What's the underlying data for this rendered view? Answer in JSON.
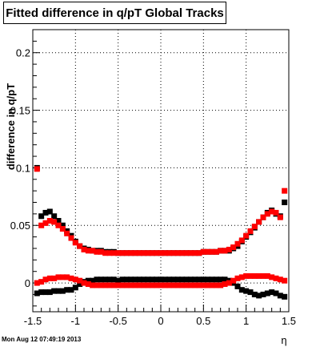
{
  "chart_data": {
    "type": "scatter",
    "title": "Fitted difference in q/pT  Global Tracks",
    "ylabel": "difference in q/pT",
    "xlabel": "η",
    "xlim": [
      -1.5,
      1.5
    ],
    "ylim": [
      -0.025,
      0.22
    ],
    "x_tick_labels": [
      "-1.5",
      "-1",
      "-0.5",
      "0",
      "0.5",
      "1",
      "1.5"
    ],
    "y_tick_labels": [
      "0",
      "0.05",
      "0.1",
      "0.15",
      "0.2"
    ],
    "grid": true,
    "series": [
      {
        "color": "#000000",
        "marker": "square",
        "x": [
          -1.45,
          -1.4,
          -1.35,
          -1.3,
          -1.25,
          -1.2,
          -1.15,
          -1.1,
          -1.05,
          -1.0,
          -0.95,
          -0.9,
          -0.85,
          -0.8,
          -0.75,
          -0.7,
          -0.65,
          -0.6,
          -0.55,
          -0.5,
          -0.45,
          -0.4,
          -0.35,
          -0.3,
          -0.25,
          -0.2,
          -0.15,
          -0.1,
          -0.05,
          0.0,
          0.05,
          0.1,
          0.15,
          0.2,
          0.25,
          0.3,
          0.35,
          0.4,
          0.45,
          0.5,
          0.55,
          0.6,
          0.65,
          0.7,
          0.75,
          0.8,
          0.85,
          0.9,
          0.95,
          1.0,
          1.05,
          1.1,
          1.15,
          1.2,
          1.25,
          1.3,
          1.35,
          1.4,
          1.45
        ],
        "y": [
          0.1,
          0.058,
          0.061,
          0.062,
          0.058,
          0.054,
          0.05,
          0.045,
          0.041,
          0.036,
          0.032,
          0.03,
          0.029,
          0.028,
          0.028,
          0.028,
          0.027,
          0.027,
          0.027,
          0.026,
          0.026,
          0.026,
          0.026,
          0.026,
          0.026,
          0.026,
          0.026,
          0.026,
          0.026,
          0.026,
          0.026,
          0.026,
          0.026,
          0.026,
          0.026,
          0.026,
          0.026,
          0.026,
          0.026,
          0.027,
          0.027,
          0.027,
          0.027,
          0.028,
          0.028,
          0.028,
          0.03,
          0.032,
          0.036,
          0.04,
          0.044,
          0.048,
          0.053,
          0.057,
          0.061,
          0.063,
          0.06,
          0.058,
          0.07
        ],
        "y_secondary": [
          -0.009,
          -0.008,
          -0.008,
          -0.008,
          -0.007,
          -0.007,
          -0.007,
          -0.006,
          -0.006,
          -0.004,
          -0.001,
          0.001,
          0.002,
          0.002,
          0.003,
          0.003,
          0.003,
          0.003,
          0.003,
          0.002,
          0.003,
          0.003,
          0.003,
          0.003,
          0.003,
          0.003,
          0.003,
          0.003,
          0.003,
          0.003,
          0.003,
          0.003,
          0.003,
          0.003,
          0.003,
          0.003,
          0.003,
          0.003,
          0.003,
          0.003,
          0.003,
          0.003,
          0.003,
          0.003,
          0.003,
          0.002,
          0.0,
          -0.003,
          -0.006,
          -0.007,
          -0.008,
          -0.01,
          -0.011,
          -0.01,
          -0.009,
          -0.008,
          -0.009,
          -0.011,
          -0.012
        ]
      },
      {
        "color": "#ff0000",
        "marker": "square",
        "x": [
          -1.45,
          -1.4,
          -1.35,
          -1.3,
          -1.25,
          -1.2,
          -1.15,
          -1.1,
          -1.05,
          -1.0,
          -0.95,
          -0.9,
          -0.85,
          -0.8,
          -0.75,
          -0.7,
          -0.65,
          -0.6,
          -0.55,
          -0.5,
          -0.45,
          -0.4,
          -0.35,
          -0.3,
          -0.25,
          -0.2,
          -0.15,
          -0.1,
          -0.05,
          0.0,
          0.05,
          0.1,
          0.15,
          0.2,
          0.25,
          0.3,
          0.35,
          0.4,
          0.45,
          0.5,
          0.55,
          0.6,
          0.65,
          0.7,
          0.75,
          0.8,
          0.85,
          0.9,
          0.95,
          1.0,
          1.05,
          1.1,
          1.15,
          1.2,
          1.25,
          1.3,
          1.35,
          1.4,
          1.45
        ],
        "y": [
          0.099,
          0.05,
          0.052,
          0.054,
          0.053,
          0.05,
          0.047,
          0.043,
          0.039,
          0.035,
          0.032,
          0.029,
          0.028,
          0.028,
          0.027,
          0.027,
          0.026,
          0.026,
          0.026,
          0.026,
          0.026,
          0.026,
          0.026,
          0.026,
          0.026,
          0.026,
          0.026,
          0.026,
          0.026,
          0.026,
          0.026,
          0.026,
          0.026,
          0.026,
          0.026,
          0.026,
          0.026,
          0.026,
          0.026,
          0.027,
          0.027,
          0.027,
          0.027,
          0.028,
          0.028,
          0.029,
          0.031,
          0.034,
          0.037,
          0.041,
          0.045,
          0.049,
          0.053,
          0.057,
          0.06,
          0.062,
          0.061,
          0.057,
          0.08
        ],
        "y_secondary": [
          0.0,
          0.001,
          0.003,
          0.004,
          0.004,
          0.005,
          0.005,
          0.005,
          0.004,
          0.003,
          0.002,
          0.0,
          -0.001,
          -0.002,
          -0.002,
          -0.002,
          -0.002,
          -0.002,
          -0.002,
          -0.002,
          -0.002,
          -0.002,
          -0.002,
          -0.002,
          -0.002,
          -0.002,
          -0.002,
          -0.002,
          -0.002,
          -0.002,
          -0.002,
          -0.002,
          -0.002,
          -0.002,
          -0.002,
          -0.002,
          -0.002,
          -0.002,
          -0.002,
          -0.002,
          -0.002,
          -0.002,
          -0.002,
          -0.002,
          -0.001,
          0.0,
          0.002,
          0.004,
          0.005,
          0.006,
          0.006,
          0.006,
          0.006,
          0.006,
          0.006,
          0.005,
          0.004,
          0.003,
          0.002
        ]
      }
    ]
  },
  "footer": {
    "timestamp": "Mon Aug 12 07:49:19 2013"
  }
}
